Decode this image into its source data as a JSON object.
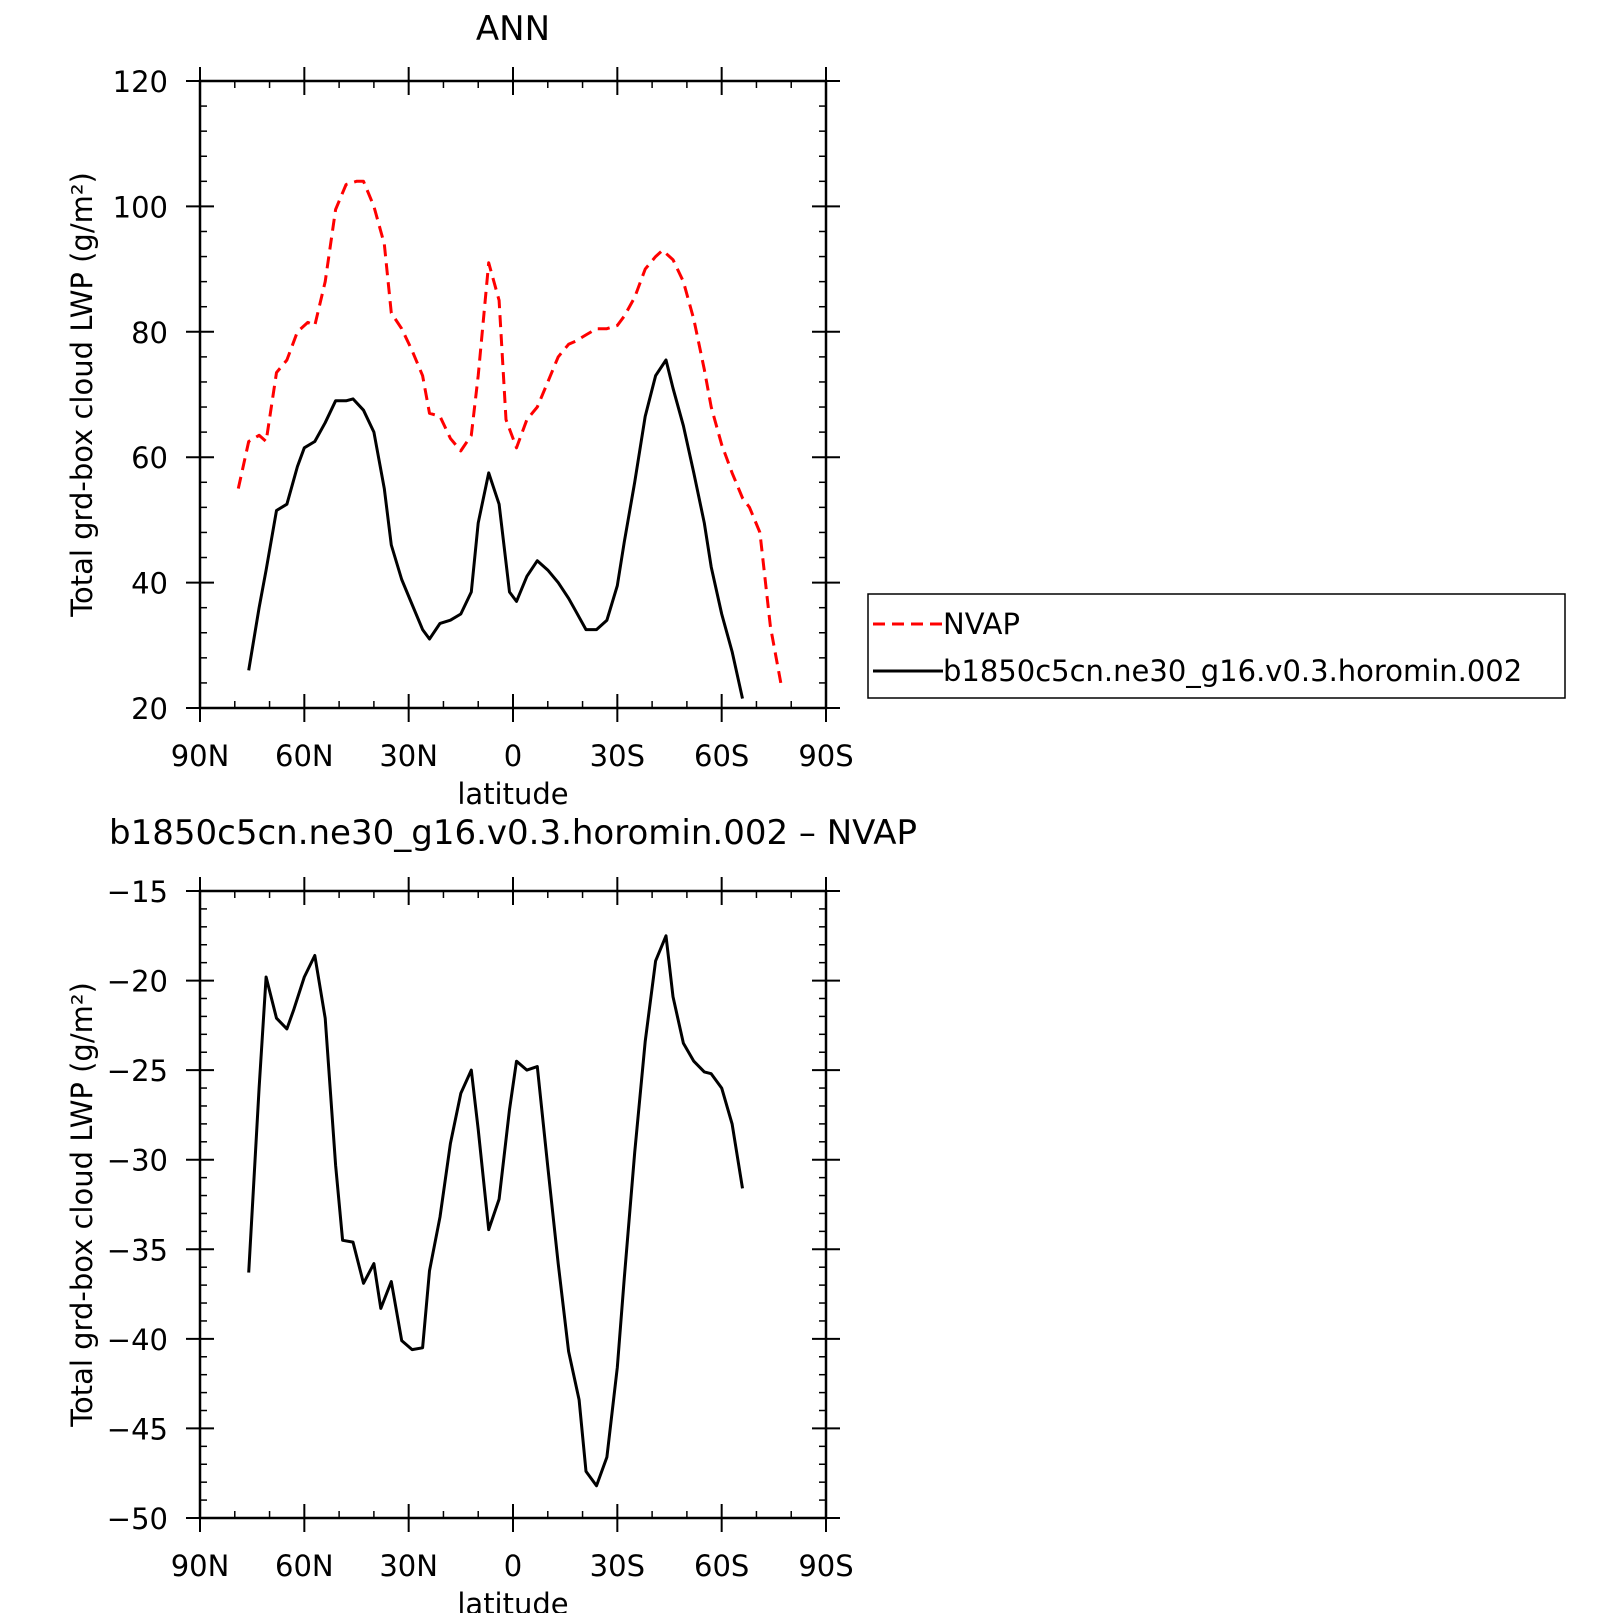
{
  "chart_data": [
    {
      "type": "line",
      "title": "ANN",
      "xlabel": "latitude",
      "ylabel": "Total grd-box cloud LWP (g/m²)",
      "xlim": [
        -90,
        90
      ],
      "ylim": [
        20,
        120
      ],
      "x_ticks": [
        {
          "value": -90,
          "label": "90N"
        },
        {
          "value": -60,
          "label": "60N"
        },
        {
          "value": -30,
          "label": "30N"
        },
        {
          "value": 0,
          "label": "0"
        },
        {
          "value": 30,
          "label": "30S"
        },
        {
          "value": 60,
          "label": "60S"
        },
        {
          "value": 90,
          "label": "90S"
        }
      ],
      "y_ticks": [
        20,
        40,
        60,
        80,
        100,
        120
      ],
      "legend": {
        "placement": "right"
      },
      "series": [
        {
          "name": "NVAP",
          "color": "#ff0000",
          "dash": true,
          "points": [
            [
              -79,
              55
            ],
            [
              -76,
              62.5
            ],
            [
              -73,
              63.5
            ],
            [
              -71,
              62.5
            ],
            [
              -68,
              73.5
            ],
            [
              -65,
              75.5
            ],
            [
              -62,
              80
            ],
            [
              -59,
              81.5
            ],
            [
              -57,
              81
            ],
            [
              -54,
              88
            ],
            [
              -51,
              99.5
            ],
            [
              -48,
              103.5
            ],
            [
              -45,
              104
            ],
            [
              -43,
              104
            ],
            [
              -40,
              100
            ],
            [
              -37,
              94
            ],
            [
              -35,
              83
            ],
            [
              -32,
              80.5
            ],
            [
              -29,
              77
            ],
            [
              -26,
              73
            ],
            [
              -24,
              67
            ],
            [
              -21,
              66.5
            ],
            [
              -18,
              63
            ],
            [
              -15,
              61
            ],
            [
              -12,
              63.5
            ],
            [
              -10,
              73
            ],
            [
              -7,
              91
            ],
            [
              -4,
              85
            ],
            [
              -2,
              66
            ],
            [
              1,
              61.5
            ],
            [
              4,
              66
            ],
            [
              7,
              68
            ],
            [
              10,
              72
            ],
            [
              13,
              76
            ],
            [
              16,
              78
            ],
            [
              18,
              78.5
            ],
            [
              21,
              79.5
            ],
            [
              24,
              80.5
            ],
            [
              27,
              80.5
            ],
            [
              30,
              81
            ],
            [
              32,
              82.5
            ],
            [
              35,
              85.5
            ],
            [
              38,
              90
            ],
            [
              41,
              92
            ],
            [
              43,
              93
            ],
            [
              46,
              91.5
            ],
            [
              49,
              88
            ],
            [
              52,
              82
            ],
            [
              55,
              74
            ],
            [
              57,
              68
            ],
            [
              60,
              62
            ],
            [
              63,
              57.5
            ],
            [
              66,
              53.5
            ],
            [
              68,
              52
            ],
            [
              71,
              48
            ],
            [
              74,
              33
            ],
            [
              77,
              24
            ]
          ]
        },
        {
          "name": "b1850c5cn.ne30_g16.v0.3.horomin.002",
          "color": "#000000",
          "dash": false,
          "points": [
            [
              -76,
              26
            ],
            [
              -73,
              36
            ],
            [
              -71,
              42
            ],
            [
              -68,
              51.5
            ],
            [
              -65,
              52.5
            ],
            [
              -62,
              58.5
            ],
            [
              -60,
              61.5
            ],
            [
              -57,
              62.5
            ],
            [
              -54,
              65.5
            ],
            [
              -51,
              69
            ],
            [
              -48,
              69
            ],
            [
              -46,
              69.3
            ],
            [
              -43,
              67.5
            ],
            [
              -40,
              64
            ],
            [
              -37,
              55
            ],
            [
              -35,
              46
            ],
            [
              -32,
              40.5
            ],
            [
              -29,
              36.5
            ],
            [
              -26,
              32.5
            ],
            [
              -24,
              31
            ],
            [
              -21,
              33.5
            ],
            [
              -18,
              34
            ],
            [
              -15,
              35
            ],
            [
              -12,
              38.5
            ],
            [
              -10,
              49.5
            ],
            [
              -7,
              57.5
            ],
            [
              -4,
              52.5
            ],
            [
              -1,
              38.5
            ],
            [
              1,
              37
            ],
            [
              4,
              41
            ],
            [
              7,
              43.5
            ],
            [
              10,
              42
            ],
            [
              13,
              40
            ],
            [
              16,
              37.5
            ],
            [
              18,
              35.5
            ],
            [
              21,
              32.5
            ],
            [
              24,
              32.5
            ],
            [
              27,
              34
            ],
            [
              30,
              39.5
            ],
            [
              32,
              46.5
            ],
            [
              35,
              56
            ],
            [
              38,
              66.5
            ],
            [
              41,
              73
            ],
            [
              44,
              75.5
            ],
            [
              46,
              71
            ],
            [
              49,
              65
            ],
            [
              52,
              57.5
            ],
            [
              55,
              49.5
            ],
            [
              57,
              42.5
            ],
            [
              60,
              35
            ],
            [
              63,
              29
            ],
            [
              66,
              21.5
            ]
          ]
        }
      ]
    },
    {
      "type": "line",
      "title": "b1850c5cn.ne30_g16.v0.3.horomin.002 – NVAP",
      "xlabel": "latitude",
      "ylabel": "Total grd-box cloud LWP (g/m²)",
      "xlim": [
        -90,
        90
      ],
      "ylim": [
        -50,
        -15
      ],
      "x_ticks": [
        {
          "value": -90,
          "label": "90N"
        },
        {
          "value": -60,
          "label": "60N"
        },
        {
          "value": -30,
          "label": "30N"
        },
        {
          "value": 0,
          "label": "0"
        },
        {
          "value": 30,
          "label": "30S"
        },
        {
          "value": 60,
          "label": "60S"
        },
        {
          "value": 90,
          "label": "90S"
        }
      ],
      "y_ticks": [
        -50,
        -45,
        -40,
        -35,
        -30,
        -25,
        -20,
        -15
      ],
      "series": [
        {
          "color": "#000000",
          "dash": false,
          "points": [
            [
              -76,
              -36.3
            ],
            [
              -73,
              -26
            ],
            [
              -71,
              -19.8
            ],
            [
              -68,
              -22.1
            ],
            [
              -65,
              -22.7
            ],
            [
              -63,
              -21.6
            ],
            [
              -60,
              -19.8
            ],
            [
              -57,
              -18.6
            ],
            [
              -54,
              -22.1
            ],
            [
              -51,
              -30.3
            ],
            [
              -49,
              -34.5
            ],
            [
              -46,
              -34.6
            ],
            [
              -43,
              -36.9
            ],
            [
              -40,
              -35.8
            ],
            [
              -38,
              -38.3
            ],
            [
              -35,
              -36.8
            ],
            [
              -32,
              -40.1
            ],
            [
              -29,
              -40.6
            ],
            [
              -26,
              -40.5
            ],
            [
              -24,
              -36.2
            ],
            [
              -21,
              -33.2
            ],
            [
              -18,
              -29.1
            ],
            [
              -15,
              -26.3
            ],
            [
              -12,
              -25
            ],
            [
              -10,
              -28.3
            ],
            [
              -7,
              -33.9
            ],
            [
              -4,
              -32.2
            ],
            [
              -1,
              -27.2
            ],
            [
              1,
              -24.5
            ],
            [
              4,
              -25
            ],
            [
              7,
              -24.8
            ],
            [
              10,
              -30.4
            ],
            [
              13,
              -35.8
            ],
            [
              16,
              -40.7
            ],
            [
              19,
              -43.4
            ],
            [
              21,
              -47.4
            ],
            [
              24,
              -48.2
            ],
            [
              27,
              -46.6
            ],
            [
              30,
              -41.6
            ],
            [
              32,
              -36.6
            ],
            [
              35,
              -29.6
            ],
            [
              38,
              -23.4
            ],
            [
              41,
              -18.9
            ],
            [
              44,
              -17.5
            ],
            [
              46,
              -20.9
            ],
            [
              49,
              -23.5
            ],
            [
              52,
              -24.5
            ],
            [
              55,
              -25.1
            ],
            [
              57,
              -25.2
            ],
            [
              60,
              -26
            ],
            [
              63,
              -28
            ],
            [
              66,
              -31.6
            ]
          ]
        }
      ]
    }
  ]
}
